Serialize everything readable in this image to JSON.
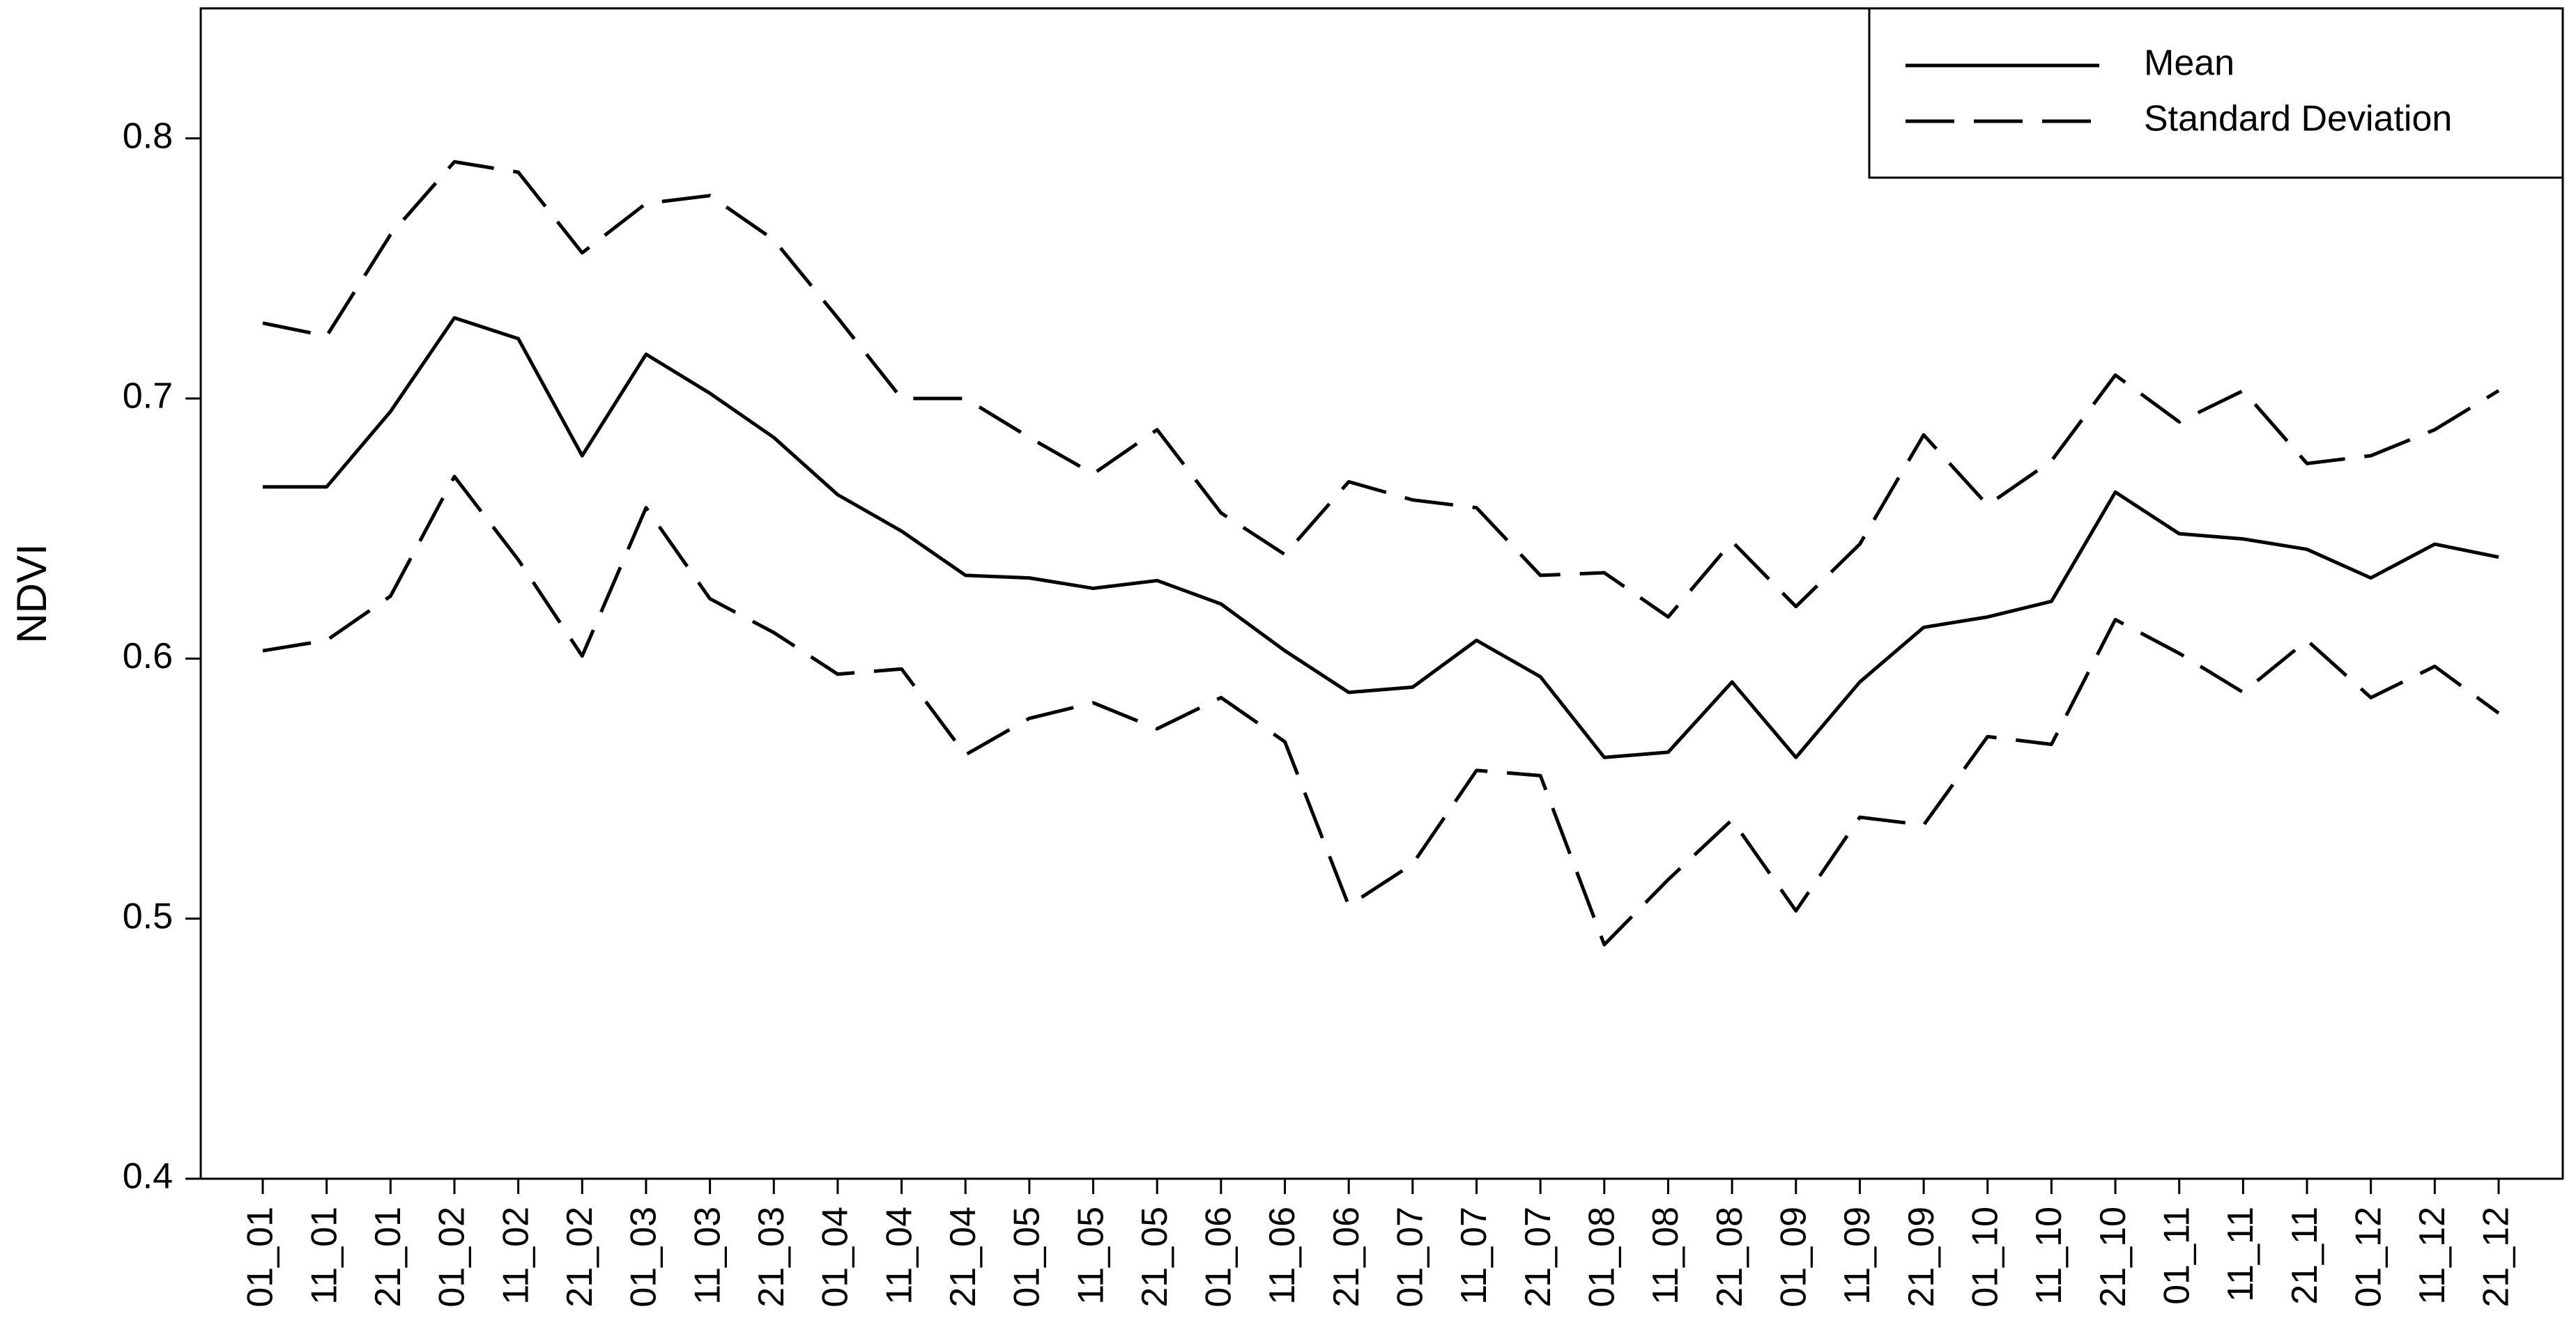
{
  "chart_data": {
    "type": "line",
    "ylabel": "NDVI",
    "categories": [
      "01_01",
      "11_01",
      "21_01",
      "01_02",
      "11_02",
      "21_02",
      "01_03",
      "11_03",
      "21_03",
      "01_04",
      "11_04",
      "21_04",
      "01_05",
      "11_05",
      "21_05",
      "01_06",
      "11_06",
      "21_06",
      "01_07",
      "11_07",
      "21_07",
      "01_08",
      "11_08",
      "21_08",
      "01_09",
      "11_09",
      "21_09",
      "01_10",
      "11_10",
      "21_10",
      "01_11",
      "11_11",
      "21_11",
      "01_12",
      "11_12",
      "21_12"
    ],
    "series": [
      {
        "name": "Mean",
        "color": "#000000",
        "dash": "solid",
        "values": [
          0.666,
          0.666,
          0.695,
          0.731,
          0.723,
          0.678,
          0.717,
          0.702,
          0.685,
          0.663,
          0.649,
          0.632,
          0.631,
          0.627,
          0.63,
          0.621,
          0.603,
          0.587,
          0.589,
          0.607,
          0.593,
          0.562,
          0.564,
          0.591,
          0.562,
          0.591,
          0.612,
          0.616,
          0.622,
          0.664,
          0.648,
          0.646,
          0.642,
          0.631,
          0.644,
          0.639
        ]
      },
      {
        "name": "Standard Deviation",
        "color": "#000000",
        "dash": "dashed",
        "values": [
          0.729,
          0.724,
          0.763,
          0.791,
          0.787,
          0.756,
          0.775,
          0.778,
          0.761,
          0.731,
          0.7,
          0.7,
          0.685,
          0.671,
          0.688,
          0.656,
          0.64,
          0.668,
          0.661,
          0.658,
          0.632,
          0.633,
          0.616,
          0.645,
          0.62,
          0.644,
          0.686,
          0.659,
          0.676,
          0.709,
          0.691,
          0.703,
          0.675,
          0.678,
          0.688,
          0.703
        ],
        "lower": [
          0.603,
          0.607,
          0.624,
          0.67,
          0.638,
          0.601,
          0.658,
          0.623,
          0.61,
          0.594,
          0.596,
          0.563,
          0.577,
          0.583,
          0.573,
          0.585,
          0.568,
          0.505,
          0.521,
          0.557,
          0.555,
          0.49,
          0.515,
          0.538,
          0.503,
          0.539,
          0.536,
          0.57,
          0.567,
          0.615,
          0.602,
          0.587,
          0.607,
          0.585,
          0.597,
          0.579
        ]
      }
    ],
    "ylim": [
      0.4,
      0.85
    ],
    "yticks": [
      0.4,
      0.5,
      0.6,
      0.7,
      0.8
    ],
    "grid": false,
    "legend": "upper-right"
  }
}
